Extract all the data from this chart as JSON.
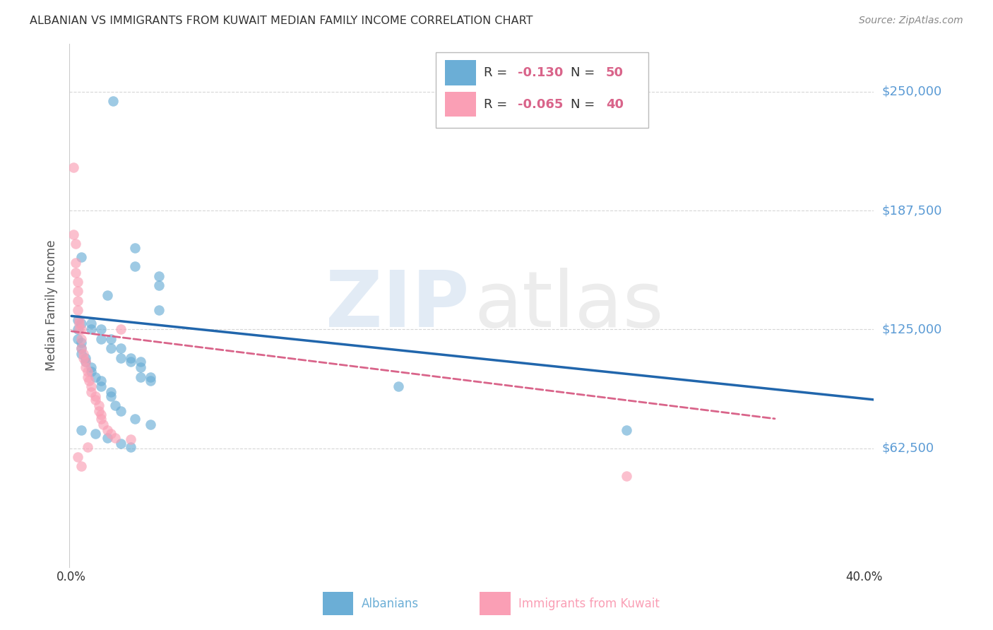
{
  "title": "ALBANIAN VS IMMIGRANTS FROM KUWAIT MEDIAN FAMILY INCOME CORRELATION CHART",
  "source": "Source: ZipAtlas.com",
  "ylabel": "Median Family Income",
  "ytick_labels": [
    "$62,500",
    "$125,000",
    "$187,500",
    "$250,000"
  ],
  "ytick_values": [
    62500,
    125000,
    187500,
    250000
  ],
  "ymin": 0,
  "ymax": 275000,
  "xmin": -0.001,
  "xmax": 0.405,
  "blue_scatter_x": [
    0.021,
    0.005,
    0.018,
    0.032,
    0.032,
    0.044,
    0.044,
    0.044,
    0.005,
    0.01,
    0.01,
    0.015,
    0.015,
    0.02,
    0.02,
    0.025,
    0.025,
    0.03,
    0.03,
    0.035,
    0.035,
    0.035,
    0.04,
    0.04,
    0.003,
    0.003,
    0.003,
    0.005,
    0.005,
    0.005,
    0.007,
    0.007,
    0.01,
    0.01,
    0.012,
    0.015,
    0.015,
    0.02,
    0.02,
    0.022,
    0.025,
    0.032,
    0.04,
    0.165,
    0.28,
    0.005,
    0.012,
    0.018,
    0.025,
    0.03
  ],
  "blue_scatter_y": [
    245000,
    163000,
    143000,
    168000,
    158000,
    153000,
    148000,
    135000,
    128000,
    128000,
    125000,
    125000,
    120000,
    120000,
    115000,
    115000,
    110000,
    110000,
    108000,
    108000,
    105000,
    100000,
    100000,
    98000,
    130000,
    125000,
    120000,
    118000,
    115000,
    112000,
    110000,
    108000,
    105000,
    103000,
    100000,
    98000,
    95000,
    92000,
    90000,
    85000,
    82000,
    78000,
    75000,
    95000,
    72000,
    72000,
    70000,
    68000,
    65000,
    63000
  ],
  "pink_scatter_x": [
    0.001,
    0.001,
    0.002,
    0.002,
    0.002,
    0.003,
    0.003,
    0.003,
    0.003,
    0.004,
    0.004,
    0.004,
    0.005,
    0.005,
    0.005,
    0.006,
    0.006,
    0.007,
    0.007,
    0.008,
    0.008,
    0.009,
    0.01,
    0.01,
    0.012,
    0.012,
    0.014,
    0.014,
    0.015,
    0.015,
    0.016,
    0.018,
    0.02,
    0.022,
    0.025,
    0.03,
    0.008,
    0.003,
    0.005,
    0.28
  ],
  "pink_scatter_y": [
    210000,
    175000,
    170000,
    160000,
    155000,
    150000,
    145000,
    140000,
    135000,
    130000,
    128000,
    125000,
    125000,
    120000,
    115000,
    112000,
    110000,
    108000,
    105000,
    103000,
    100000,
    98000,
    95000,
    92000,
    90000,
    88000,
    85000,
    82000,
    80000,
    78000,
    75000,
    72000,
    70000,
    68000,
    125000,
    67000,
    63000,
    58000,
    53000,
    48000
  ],
  "blue_line_x": [
    0.0,
    0.405
  ],
  "blue_line_y": [
    132000,
    88000
  ],
  "pink_line_x": [
    0.0,
    0.355
  ],
  "pink_line_y": [
    124000,
    78000
  ],
  "blue_color": "#6baed6",
  "pink_color": "#fa9fb5",
  "blue_line_color": "#2166ac",
  "pink_line_color": "#d9648a",
  "title_color": "#333333",
  "ytick_color": "#5b9bd5",
  "grid_color": "#cccccc",
  "bg_color": "#ffffff",
  "watermark_zip_color": "#b8cfe8",
  "watermark_atlas_color": "#d0d0d0",
  "source_color": "#888888",
  "ylabel_color": "#555555",
  "legend_r_color": "#d9648a",
  "legend_n_color": "#d9648a",
  "legend_text_color": "#333333",
  "bottom_label_blue": "Albanians",
  "bottom_label_pink": "Immigrants from Kuwait"
}
